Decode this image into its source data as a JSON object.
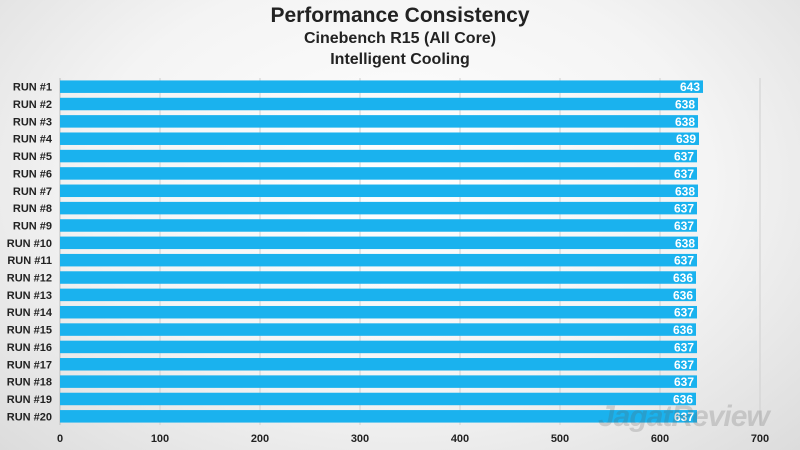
{
  "chart_data": {
    "type": "bar",
    "orientation": "horizontal",
    "title": "Performance Consistency",
    "subtitle": "Cinebench R15 (All Core)",
    "subtitle2": "Intelligent Cooling",
    "categories": [
      "RUN #1",
      "RUN #2",
      "RUN #3",
      "RUN #4",
      "RUN #5",
      "RUN #6",
      "RUN #7",
      "RUN #8",
      "RUN #9",
      "RUN #10",
      "RUN #11",
      "RUN #12",
      "RUN #13",
      "RUN #14",
      "RUN #15",
      "RUN #16",
      "RUN #17",
      "RUN #18",
      "RUN #19",
      "RUN #20"
    ],
    "values": [
      643,
      638,
      638,
      639,
      637,
      637,
      638,
      637,
      637,
      638,
      637,
      636,
      636,
      637,
      636,
      637,
      637,
      637,
      636,
      637
    ],
    "xlim": [
      0,
      700
    ],
    "xticks": [
      0,
      100,
      200,
      300,
      400,
      500,
      600,
      700
    ],
    "grid": true,
    "legend": "none",
    "bar_color": "#1ab2ee"
  },
  "watermark": "JagatReview"
}
